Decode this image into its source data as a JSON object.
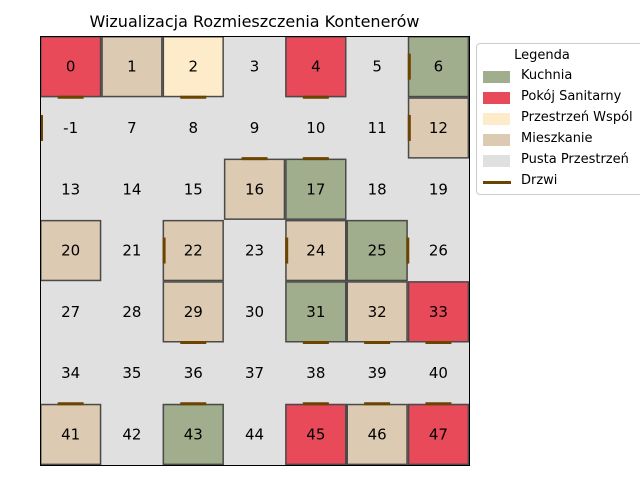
{
  "colors": {
    "Kuchnia": "#a0ae8e",
    "Pokój Sanitarny": "#e84a5a",
    "Przestrzeń Wspólna": "#feebc9",
    "Mieszkanie": "#dccab2",
    "Pusta Przestrzeń": "#e0e0e0",
    "door": "#6b4400",
    "border": "#4a4a4a"
  },
  "chart_data": {
    "type": "heatmap",
    "title": "Wizualizacja Rozmieszczenia Kontenerów",
    "grid": {
      "cols": 7,
      "rows": 7
    },
    "cells": [
      {
        "label": "0",
        "type": "Pokój Sanitarny"
      },
      {
        "label": "1",
        "type": "Mieszkanie"
      },
      {
        "label": "2",
        "type": "Przestrzeń Wspólna"
      },
      {
        "label": "3",
        "type": "Pusta Przestrzeń"
      },
      {
        "label": "4",
        "type": "Pokój Sanitarny"
      },
      {
        "label": "5",
        "type": "Pusta Przestrzeń"
      },
      {
        "label": "6",
        "type": "Kuchnia"
      },
      {
        "label": "-1",
        "type": "Pusta Przestrzeń"
      },
      {
        "label": "7",
        "type": "Pusta Przestrzeń"
      },
      {
        "label": "8",
        "type": "Pusta Przestrzeń"
      },
      {
        "label": "9",
        "type": "Pusta Przestrzeń"
      },
      {
        "label": "10",
        "type": "Pusta Przestrzeń"
      },
      {
        "label": "11",
        "type": "Pusta Przestrzeń"
      },
      {
        "label": "12",
        "type": "Mieszkanie"
      },
      {
        "label": "13",
        "type": "Pusta Przestrzeń"
      },
      {
        "label": "14",
        "type": "Pusta Przestrzeń"
      },
      {
        "label": "15",
        "type": "Pusta Przestrzeń"
      },
      {
        "label": "16",
        "type": "Mieszkanie"
      },
      {
        "label": "17",
        "type": "Kuchnia"
      },
      {
        "label": "18",
        "type": "Pusta Przestrzeń"
      },
      {
        "label": "19",
        "type": "Pusta Przestrzeń"
      },
      {
        "label": "20",
        "type": "Mieszkanie"
      },
      {
        "label": "21",
        "type": "Pusta Przestrzeń"
      },
      {
        "label": "22",
        "type": "Mieszkanie"
      },
      {
        "label": "23",
        "type": "Pusta Przestrzeń"
      },
      {
        "label": "24",
        "type": "Mieszkanie"
      },
      {
        "label": "25",
        "type": "Kuchnia"
      },
      {
        "label": "26",
        "type": "Pusta Przestrzeń"
      },
      {
        "label": "27",
        "type": "Pusta Przestrzeń"
      },
      {
        "label": "28",
        "type": "Pusta Przestrzeń"
      },
      {
        "label": "29",
        "type": "Mieszkanie"
      },
      {
        "label": "30",
        "type": "Pusta Przestrzeń"
      },
      {
        "label": "31",
        "type": "Kuchnia"
      },
      {
        "label": "32",
        "type": "Mieszkanie"
      },
      {
        "label": "33",
        "type": "Pokój Sanitarny"
      },
      {
        "label": "34",
        "type": "Pusta Przestrzeń"
      },
      {
        "label": "35",
        "type": "Pusta Przestrzeń"
      },
      {
        "label": "36",
        "type": "Pusta Przestrzeń"
      },
      {
        "label": "37",
        "type": "Pusta Przestrzeń"
      },
      {
        "label": "38",
        "type": "Pusta Przestrzeń"
      },
      {
        "label": "39",
        "type": "Pusta Przestrzeń"
      },
      {
        "label": "40",
        "type": "Pusta Przestrzeń"
      },
      {
        "label": "41",
        "type": "Mieszkanie"
      },
      {
        "label": "42",
        "type": "Pusta Przestrzeń"
      },
      {
        "label": "43",
        "type": "Kuchnia"
      },
      {
        "label": "44",
        "type": "Pusta Przestrzeń"
      },
      {
        "label": "45",
        "type": "Pokój Sanitarny"
      },
      {
        "label": "46",
        "type": "Mieszkanie"
      },
      {
        "label": "47",
        "type": "Pokój Sanitarny"
      }
    ],
    "doors": [
      {
        "cell": "0",
        "side": "bottom"
      },
      {
        "cell": "2",
        "side": "bottom"
      },
      {
        "cell": "4",
        "side": "bottom"
      },
      {
        "cell": "6",
        "side": "left"
      },
      {
        "cell": "-1",
        "side": "left"
      },
      {
        "cell": "12",
        "side": "left"
      },
      {
        "cell": "16",
        "side": "top"
      },
      {
        "cell": "17",
        "side": "top"
      },
      {
        "cell": "22",
        "side": "left"
      },
      {
        "cell": "24",
        "side": "left"
      },
      {
        "cell": "25",
        "side": "right"
      },
      {
        "cell": "29",
        "side": "bottom"
      },
      {
        "cell": "31",
        "side": "bottom"
      },
      {
        "cell": "32",
        "side": "bottom"
      },
      {
        "cell": "33",
        "side": "bottom"
      },
      {
        "cell": "41",
        "side": "top"
      },
      {
        "cell": "43",
        "side": "top"
      },
      {
        "cell": "45",
        "side": "top"
      },
      {
        "cell": "46",
        "side": "top"
      },
      {
        "cell": "47",
        "side": "top"
      }
    ],
    "legend": {
      "title": "Legenda",
      "placement": "top-right",
      "entries": [
        {
          "label": "Kuchnia",
          "type": "Kuchnia",
          "kind": "patch"
        },
        {
          "label": "Pokój Sanitarny",
          "type": "Pokój Sanitarny",
          "kind": "patch"
        },
        {
          "label": "Przestrzeń Wspól",
          "type": "Przestrzeń Wspólna",
          "kind": "patch"
        },
        {
          "label": "Mieszkanie",
          "type": "Mieszkanie",
          "kind": "patch"
        },
        {
          "label": "Pusta Przestrzeń",
          "type": "Pusta Przestrzeń",
          "kind": "patch"
        },
        {
          "label": "Drzwi",
          "type": "door",
          "kind": "line"
        }
      ]
    }
  }
}
